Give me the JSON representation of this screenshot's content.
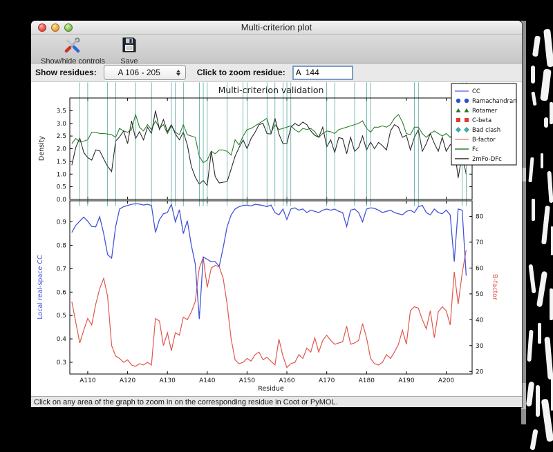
{
  "window": {
    "title": "Multi-criterion plot"
  },
  "toolbar": {
    "items": [
      {
        "label": "Show/hide controls",
        "icon": "tools-icon"
      },
      {
        "label": "Save",
        "icon": "save-icon"
      }
    ]
  },
  "controls": {
    "show_residues_label": "Show residues:",
    "show_residues_value": "A 106 - 205",
    "zoom_residue_label": "Click to zoom residue:",
    "zoom_residue_value": "A  144"
  },
  "statusbar": {
    "text": "Click on any area of the graph to zoom in on the corresponding residue in Coot or PyMOL."
  },
  "chart_data": {
    "type": "line",
    "title": "Multi-criterion validation",
    "xlabel": "Residue",
    "residue_start": 106,
    "xlim": [
      105.5,
      206.5
    ],
    "x_ticks": [
      {
        "value": 110,
        "label": "A110"
      },
      {
        "value": 120,
        "label": "A120"
      },
      {
        "value": 130,
        "label": "A130"
      },
      {
        "value": 140,
        "label": "A140"
      },
      {
        "value": 150,
        "label": "A150"
      },
      {
        "value": 160,
        "label": "A160"
      },
      {
        "value": 170,
        "label": "A170"
      },
      {
        "value": 180,
        "label": "A180"
      },
      {
        "value": 190,
        "label": "A190"
      },
      {
        "value": 200,
        "label": "A200"
      }
    ],
    "top": {
      "ylabel": "Density",
      "ylabel_color": "#1a1a1a",
      "ylim": [
        0,
        4.0
      ],
      "yticks": [
        {
          "v": 0,
          "l": "0.0"
        },
        {
          "v": 0.5,
          "l": "0.5"
        },
        {
          "v": 1.0,
          "l": "1.0"
        },
        {
          "v": 1.5,
          "l": "1.5"
        },
        {
          "v": 2.0,
          "l": "2.0"
        },
        {
          "v": 2.5,
          "l": "2.5"
        },
        {
          "v": 3.0,
          "l": "3.0"
        },
        {
          "v": 3.5,
          "l": "3.5"
        }
      ],
      "series": [
        {
          "name": "Fc",
          "color": "#2e7d2e",
          "values": [
            2.2,
            2.4,
            2.28,
            2.3,
            2.35,
            2.65,
            2.65,
            2.6,
            2.6,
            2.58,
            2.55,
            2.45,
            2.8,
            2.7,
            2.65,
            2.75,
            3.35,
            2.85,
            2.7,
            2.95,
            2.75,
            3.1,
            2.8,
            2.95,
            2.6,
            2.9,
            2.65,
            2.55,
            2.95,
            2.55,
            2.5,
            2.45,
            1.7,
            1.45,
            1.55,
            1.9,
            1.8,
            1.95,
            1.95,
            1.9,
            1.75,
            2.35,
            2.15,
            2.5,
            2.75,
            2.8,
            2.9,
            3.0,
            3.1,
            3.2,
            2.62,
            2.95,
            2.76,
            2.8,
            2.85,
            2.9,
            2.75,
            2.65,
            2.8,
            2.76,
            2.8,
            2.67,
            2.45,
            2.6,
            2.7,
            2.67,
            2.6,
            2.75,
            2.8,
            2.85,
            2.9,
            2.95,
            3.0,
            3.1,
            2.8,
            2.65,
            2.85,
            2.85,
            2.9,
            2.85,
            2.95,
            3.2,
            3.35,
            3.05,
            2.6,
            2.55,
            2.85,
            2.85,
            2.6,
            2.45,
            2.6,
            2.7,
            2.6,
            2.5,
            2.6,
            2.45,
            2.65,
            2.4,
            2.55,
            2.6
          ]
        },
        {
          "name": "2mFo-DFc",
          "color": "#2b2b2b",
          "values": [
            1.35,
            2.05,
            2.42,
            1.85,
            1.65,
            1.55,
            1.95,
            1.92,
            1.6,
            1.3,
            1.1,
            2.3,
            2.47,
            2.7,
            2.2,
            3.1,
            2.4,
            2.67,
            2.35,
            2.85,
            2.6,
            3.5,
            2.76,
            3.15,
            2.67,
            2.95,
            2.58,
            2.35,
            2.65,
            2.15,
            1.3,
            0.88,
            0.6,
            0.75,
            0.55,
            1.9,
            0.9,
            0.65,
            0.68,
            0.7,
            1.2,
            1.7,
            2.05,
            2.35,
            2.0,
            2.4,
            2.65,
            2.95,
            3.0,
            2.6,
            2.58,
            3.2,
            2.58,
            2.2,
            2.2,
            2.85,
            3.0,
            2.9,
            3.05,
            2.95,
            2.7,
            2.53,
            2.45,
            2.85,
            2.07,
            2.35,
            1.85,
            2.44,
            2.4,
            1.8,
            2.45,
            1.89,
            2.05,
            2.5,
            1.95,
            2.26,
            2.0,
            2.25,
            2.12,
            1.95,
            2.7,
            2.95,
            2.85,
            2.45,
            2.53,
            1.95,
            2.44,
            2.75,
            1.9,
            2.2,
            2.6,
            2.21,
            1.9,
            2.45,
            1.9,
            2.16,
            2.07,
            0.85,
            1.76,
            1.0
          ]
        }
      ]
    },
    "bottom": {
      "left_ylabel": "Local real-space CC",
      "left_color": "#4254d8",
      "left_ylim": [
        0.25,
        0.99
      ],
      "left_yticks": [
        {
          "v": 0.3,
          "l": "0.3"
        },
        {
          "v": 0.4,
          "l": "0.4"
        },
        {
          "v": 0.5,
          "l": "0.5"
        },
        {
          "v": 0.6,
          "l": "0.6"
        },
        {
          "v": 0.7,
          "l": "0.7"
        },
        {
          "v": 0.8,
          "l": "0.8"
        },
        {
          "v": 0.9,
          "l": "0.9"
        }
      ],
      "right_ylabel": "B-factor",
      "right_color": "#e1564d",
      "right_ylim": [
        19,
        86
      ],
      "right_yticks": [
        {
          "v": 20,
          "l": "20"
        },
        {
          "v": 30,
          "l": "30"
        },
        {
          "v": 40,
          "l": "40"
        },
        {
          "v": 50,
          "l": "50"
        },
        {
          "v": 60,
          "l": "60"
        },
        {
          "v": 70,
          "l": "70"
        },
        {
          "v": 80,
          "l": "80"
        }
      ],
      "cc_series": {
        "name": "CC",
        "color": "#4254d8",
        "values": [
          0.855,
          0.885,
          0.903,
          0.92,
          0.903,
          0.88,
          0.879,
          0.922,
          0.85,
          0.76,
          0.745,
          0.88,
          0.955,
          0.965,
          0.97,
          0.975,
          0.978,
          0.976,
          0.972,
          0.975,
          0.97,
          0.855,
          0.91,
          0.935,
          0.94,
          0.975,
          0.9,
          0.952,
          0.85,
          0.905,
          0.8,
          0.72,
          0.485,
          0.75,
          0.74,
          0.73,
          0.73,
          0.71,
          0.79,
          0.88,
          0.93,
          0.955,
          0.965,
          0.97,
          0.972,
          0.968,
          0.975,
          0.973,
          0.97,
          0.965,
          0.972,
          0.94,
          0.93,
          0.955,
          0.91,
          0.955,
          0.96,
          0.95,
          0.955,
          0.94,
          0.95,
          0.945,
          0.94,
          0.95,
          0.955,
          0.95,
          0.955,
          0.945,
          0.94,
          0.88,
          0.95,
          0.955,
          0.94,
          0.9,
          0.955,
          0.96,
          0.958,
          0.95,
          0.94,
          0.945,
          0.95,
          0.94,
          0.935,
          0.93,
          0.945,
          0.95,
          0.94,
          0.965,
          0.97,
          0.94,
          0.93,
          0.955,
          0.94,
          0.935,
          0.95,
          0.93,
          0.73,
          0.955,
          0.95,
          0.67
        ]
      },
      "bfactor_series": {
        "name": "B-factor",
        "color": "#e1564d",
        "values": [
          47,
          39,
          31,
          36,
          40.5,
          38,
          46,
          52,
          56,
          49,
          30,
          26,
          25,
          23.5,
          24.5,
          22.5,
          22,
          23,
          22.5,
          23.5,
          22.5,
          40.5,
          39.5,
          30,
          35,
          28,
          35,
          34,
          41,
          40,
          43,
          47,
          60,
          64,
          52.5,
          60,
          61,
          60.5,
          56,
          46,
          32.5,
          24.5,
          23,
          23.5,
          25,
          24,
          26.5,
          27.5,
          24.5,
          25.5,
          24,
          22.5,
          32.5,
          26,
          21.5,
          23,
          23.5,
          26.5,
          25,
          29,
          27.5,
          33,
          27.5,
          32,
          34,
          32,
          30.5,
          31,
          31.5,
          37.5,
          30.5,
          31,
          32,
          38.5,
          33,
          25,
          23,
          22.5,
          23.5,
          26.5,
          25,
          27.5,
          30.5,
          36,
          30.5,
          43.5,
          45,
          44.5,
          40,
          36.5,
          43.5,
          33,
          43,
          45,
          43.5,
          38,
          58.5,
          46,
          58,
          67
        ]
      },
      "markers": {
        "ramachandran": {
          "shape": "circle",
          "color": "#2a52cc",
          "residues": []
        },
        "rotamer": {
          "shape": "triangle",
          "color": "#1f7a1f",
          "residues": [
            106,
            107,
            108,
            134,
            158,
            179,
            204
          ]
        },
        "cbeta": {
          "shape": "square",
          "color": "#dd3b2d",
          "residues": []
        },
        "bad_clash": {
          "shape": "diamond",
          "color": "#3cb3ab",
          "residues": [
            108,
            110,
            115,
            117,
            122,
            126,
            131,
            132,
            134,
            138,
            139,
            140,
            145,
            149,
            150,
            155,
            157,
            159,
            160,
            161,
            170,
            172,
            177,
            180,
            181,
            192,
            193,
            204,
            205
          ]
        }
      }
    },
    "legend": {
      "position": "top-right",
      "entries": [
        {
          "label": "CC",
          "type": "line",
          "color": "#6a78e8"
        },
        {
          "label": "Ramachandran",
          "type": "markers",
          "shape": "circle",
          "color": "#2a52cc"
        },
        {
          "label": "Rotamer",
          "type": "markers",
          "shape": "triangle",
          "color": "#1f7a1f"
        },
        {
          "label": "C-beta",
          "type": "markers",
          "shape": "square",
          "color": "#dd3b2d"
        },
        {
          "label": "Bad clash",
          "type": "markers",
          "shape": "diamond",
          "color": "#3cb3ab"
        },
        {
          "label": "B-factor",
          "type": "line",
          "color": "#f28b7d"
        },
        {
          "label": "Fc",
          "type": "line",
          "color": "#2e7d2e"
        },
        {
          "label": "2mFo-DFc",
          "type": "line",
          "color": "#2b2b2b"
        }
      ]
    }
  }
}
